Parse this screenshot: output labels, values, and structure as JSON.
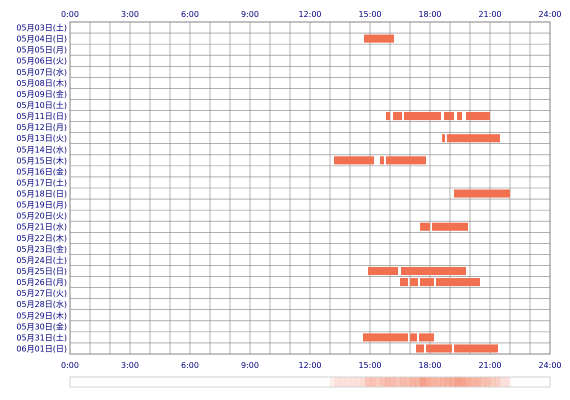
{
  "chart_data": {
    "type": "timeline",
    "title": "",
    "x_ticks": [
      "0:00",
      "3:00",
      "6:00",
      "9:00",
      "12:00",
      "15:00",
      "18:00",
      "21:00",
      "24:00"
    ],
    "x_range_hours": [
      0,
      24
    ],
    "grid": true,
    "bar_color": "#f07050",
    "grid_color": "#808080",
    "label_color": "#000080",
    "rows": [
      {
        "label": "05月03日(土)",
        "segments": []
      },
      {
        "label": "05月04日(日)",
        "segments": [
          [
            14.7,
            16.2
          ]
        ]
      },
      {
        "label": "05月05日(月)",
        "segments": []
      },
      {
        "label": "05月06日(火)",
        "segments": []
      },
      {
        "label": "05月07日(水)",
        "segments": []
      },
      {
        "label": "05月08日(木)",
        "segments": []
      },
      {
        "label": "05月09日(金)",
        "segments": []
      },
      {
        "label": "05月10日(土)",
        "segments": []
      },
      {
        "label": "05月11日(日)",
        "segments": [
          [
            15.8,
            16.0
          ],
          [
            16.15,
            16.6
          ],
          [
            16.7,
            18.55
          ],
          [
            18.7,
            19.2
          ],
          [
            19.35,
            19.6
          ],
          [
            19.8,
            21.0
          ]
        ]
      },
      {
        "label": "05月12日(月)",
        "segments": []
      },
      {
        "label": "05月13日(火)",
        "segments": [
          [
            18.6,
            18.75
          ],
          [
            18.85,
            21.5
          ]
        ]
      },
      {
        "label": "05月14日(水)",
        "segments": []
      },
      {
        "label": "05月15日(木)",
        "segments": [
          [
            13.2,
            15.2
          ],
          [
            15.5,
            15.7
          ],
          [
            15.8,
            17.8
          ]
        ]
      },
      {
        "label": "05月16日(金)",
        "segments": []
      },
      {
        "label": "05月17日(土)",
        "segments": []
      },
      {
        "label": "05月18日(日)",
        "segments": [
          [
            19.2,
            22.0
          ]
        ]
      },
      {
        "label": "05月19日(月)",
        "segments": []
      },
      {
        "label": "05月20日(火)",
        "segments": []
      },
      {
        "label": "05月21日(水)",
        "segments": [
          [
            17.5,
            18.0
          ],
          [
            18.1,
            19.9
          ]
        ]
      },
      {
        "label": "05月22日(木)",
        "segments": []
      },
      {
        "label": "05月23日(金)",
        "segments": []
      },
      {
        "label": "05月24日(土)",
        "segments": []
      },
      {
        "label": "05月25日(日)",
        "segments": [
          [
            14.9,
            16.4
          ],
          [
            16.55,
            19.8
          ]
        ]
      },
      {
        "label": "05月26日(月)",
        "segments": [
          [
            16.5,
            16.9
          ],
          [
            17.0,
            17.4
          ],
          [
            17.5,
            18.2
          ],
          [
            18.3,
            20.5
          ]
        ]
      },
      {
        "label": "05月27日(火)",
        "segments": []
      },
      {
        "label": "05月28日(水)",
        "segments": []
      },
      {
        "label": "05月29日(木)",
        "segments": []
      },
      {
        "label": "05月30日(金)",
        "segments": []
      },
      {
        "label": "05月31日(土)",
        "segments": [
          [
            14.65,
            16.9
          ],
          [
            17.0,
            17.35
          ],
          [
            17.45,
            18.2
          ]
        ]
      },
      {
        "label": "06月01日(日)",
        "segments": [
          [
            17.3,
            17.7
          ],
          [
            17.8,
            19.1
          ],
          [
            19.2,
            21.4
          ]
        ]
      }
    ],
    "density_strip_color": "#f07050"
  }
}
